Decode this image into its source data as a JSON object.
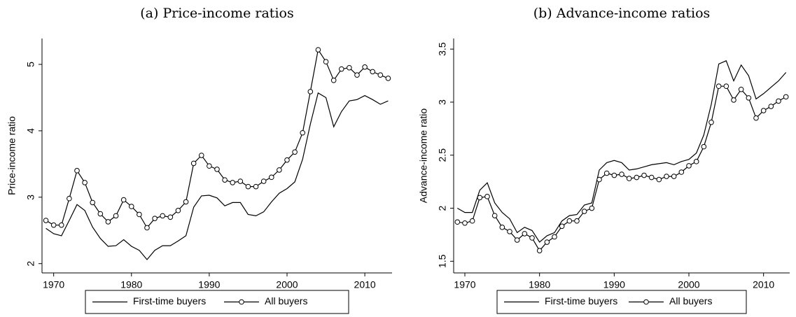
{
  "chart_data": [
    {
      "type": "line",
      "title": "(a) Price-income ratios",
      "ylabel": "Price-income ratio",
      "x": [
        1969,
        1970,
        1971,
        1972,
        1973,
        1974,
        1975,
        1976,
        1977,
        1978,
        1979,
        1980,
        1981,
        1982,
        1983,
        1984,
        1985,
        1986,
        1987,
        1988,
        1989,
        1990,
        1991,
        1992,
        1993,
        1994,
        1995,
        1996,
        1997,
        1998,
        1999,
        2000,
        2001,
        2002,
        2003,
        2004,
        2005,
        2006,
        2007,
        2008,
        2009,
        2010,
        2011,
        2012,
        2013
      ],
      "xlim": [
        1968.5,
        2013.5
      ],
      "xticks": [
        1970,
        1980,
        1990,
        2000,
        2010
      ],
      "ylim": [
        1.86,
        5.39
      ],
      "yticks": [
        2,
        3,
        4,
        5
      ],
      "series": [
        {
          "name": "First-time buyers",
          "color": "#000000",
          "marker": "none",
          "values": [
            2.53,
            2.45,
            2.42,
            2.65,
            2.89,
            2.8,
            2.55,
            2.38,
            2.26,
            2.27,
            2.36,
            2.26,
            2.2,
            2.06,
            2.2,
            2.27,
            2.27,
            2.34,
            2.42,
            2.85,
            3.02,
            3.03,
            2.99,
            2.87,
            2.92,
            2.92,
            2.74,
            2.72,
            2.78,
            2.93,
            3.06,
            3.13,
            3.23,
            3.57,
            4.1,
            4.57,
            4.5,
            4.06,
            4.29,
            4.45,
            4.47,
            4.53,
            4.47,
            4.4,
            4.45
          ]
        },
        {
          "name": "All buyers",
          "color": "#000000",
          "marker": "circle",
          "values": [
            2.65,
            2.58,
            2.58,
            2.98,
            3.4,
            3.22,
            2.92,
            2.75,
            2.63,
            2.72,
            2.96,
            2.86,
            2.74,
            2.54,
            2.68,
            2.72,
            2.7,
            2.8,
            2.93,
            3.51,
            3.63,
            3.47,
            3.42,
            3.26,
            3.22,
            3.24,
            3.16,
            3.16,
            3.24,
            3.3,
            3.41,
            3.56,
            3.68,
            3.97,
            4.59,
            5.22,
            5.04,
            4.76,
            4.93,
            4.95,
            4.84,
            4.96,
            4.89,
            4.84,
            4.79
          ]
        }
      ]
    },
    {
      "type": "line",
      "title": "(b) Advance-income ratios",
      "ylabel": "Advance-income ratio",
      "x": [
        1969,
        1970,
        1971,
        1972,
        1973,
        1974,
        1975,
        1976,
        1977,
        1978,
        1979,
        1980,
        1981,
        1982,
        1983,
        1984,
        1985,
        1986,
        1987,
        1988,
        1989,
        1990,
        1991,
        1992,
        1993,
        1994,
        1995,
        1996,
        1997,
        1998,
        1999,
        2000,
        2001,
        2002,
        2003,
        2004,
        2005,
        2006,
        2007,
        2008,
        2009,
        2010,
        2011,
        2012,
        2013
      ],
      "xlim": [
        1968.5,
        2013.5
      ],
      "xticks": [
        1970,
        1980,
        1990,
        2000,
        2010
      ],
      "ylim": [
        1.39,
        3.6
      ],
      "yticks": [
        1.5,
        2,
        2.5,
        3,
        3.5
      ],
      "series": [
        {
          "name": "First-time buyers",
          "color": "#000000",
          "marker": "none",
          "values": [
            2.0,
            1.96,
            1.96,
            2.17,
            2.24,
            2.05,
            1.96,
            1.9,
            1.77,
            1.82,
            1.79,
            1.68,
            1.74,
            1.77,
            1.88,
            1.93,
            1.94,
            2.03,
            2.05,
            2.36,
            2.43,
            2.45,
            2.43,
            2.36,
            2.37,
            2.39,
            2.41,
            2.42,
            2.43,
            2.41,
            2.44,
            2.46,
            2.52,
            2.69,
            2.98,
            3.36,
            3.39,
            3.2,
            3.35,
            3.25,
            3.03,
            3.08,
            3.14,
            3.2,
            3.28
          ]
        },
        {
          "name": "All buyers",
          "color": "#000000",
          "marker": "circle",
          "values": [
            1.87,
            1.86,
            1.88,
            2.1,
            2.11,
            1.93,
            1.82,
            1.78,
            1.7,
            1.76,
            1.72,
            1.6,
            1.68,
            1.73,
            1.83,
            1.88,
            1.88,
            1.97,
            2.0,
            2.27,
            2.33,
            2.31,
            2.32,
            2.28,
            2.29,
            2.31,
            2.29,
            2.27,
            2.3,
            2.3,
            2.34,
            2.4,
            2.44,
            2.58,
            2.81,
            3.15,
            3.15,
            3.02,
            3.12,
            3.04,
            2.85,
            2.92,
            2.96,
            3.01,
            3.05
          ]
        }
      ]
    }
  ]
}
